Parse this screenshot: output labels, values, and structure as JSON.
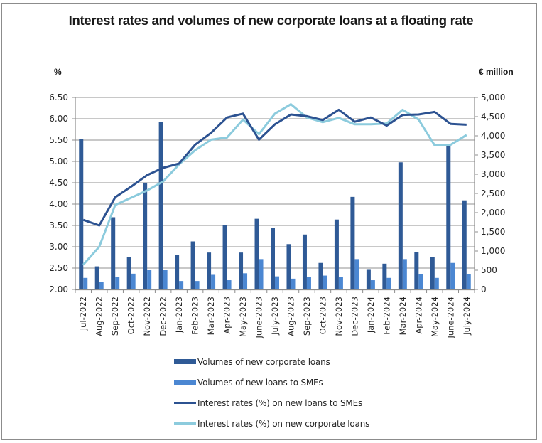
{
  "chart_data": {
    "type": "bar",
    "title": "Interest rates and volumes of new corporate loans at a floating rate",
    "categories": [
      "Jul-2022",
      "Aug-2022",
      "Sep-2022",
      "Oct-2022",
      "Nov-2022",
      "Dec-2022",
      "Jan-2023",
      "Feb-2023",
      "Mar-2023",
      "Apr-2023",
      "May-2023",
      "June-2023",
      "July-2023",
      "Aug-2023",
      "Sep-2023",
      "Oct-2023",
      "Nov-2023",
      "Dec-2023",
      "Jan-2024",
      "Feb-2024",
      "Mar-2024",
      "Apr-2024",
      "May-2024",
      "June-2024",
      "July-2024"
    ],
    "left_axis": {
      "label": "%",
      "range": [
        2.0,
        6.5
      ],
      "step": 0.5,
      "tick_labels": [
        "2.00",
        "2.50",
        "3.00",
        "3.50",
        "4.00",
        "4.50",
        "5.00",
        "5.50",
        "6.00",
        "6.50"
      ]
    },
    "right_axis": {
      "label": "€ million",
      "range": [
        0,
        5000
      ],
      "step": 500,
      "tick_labels": [
        "0",
        "500",
        "1,000",
        "1,500",
        "2,000",
        "2,500",
        "3,000",
        "3,500",
        "4,000",
        "4,500",
        "5,000"
      ]
    },
    "grid": true,
    "legend_position": "bottom",
    "series": [
      {
        "name": "Volumes of new corporate loans",
        "kind": "bar",
        "axis": "right",
        "color": "#2f5a96",
        "values": [
          3910,
          600,
          1880,
          850,
          2780,
          4360,
          890,
          1250,
          960,
          1670,
          960,
          1840,
          1610,
          1180,
          1430,
          690,
          1820,
          2410,
          510,
          670,
          3310,
          980,
          850,
          3740,
          2320
        ]
      },
      {
        "name": "Volumes of new loans to SMEs",
        "kind": "bar",
        "axis": "right",
        "color": "#4b87d2",
        "values": [
          300,
          190,
          320,
          410,
          500,
          500,
          220,
          220,
          380,
          240,
          420,
          790,
          340,
          280,
          330,
          360,
          330,
          790,
          240,
          300,
          790,
          400,
          300,
          690,
          400
        ]
      },
      {
        "name": "Interest rates (%) on new loans to SMEs",
        "kind": "line",
        "axis": "left",
        "color": "#2c5291",
        "values": [
          3.63,
          3.5,
          4.16,
          4.41,
          4.68,
          4.85,
          4.95,
          5.39,
          5.67,
          6.03,
          6.12,
          5.51,
          5.87,
          6.1,
          6.06,
          5.97,
          6.21,
          5.93,
          6.03,
          5.84,
          6.09,
          6.1,
          6.16,
          5.88,
          5.86
        ]
      },
      {
        "name": "Interest rates (%) on new corporate loans",
        "kind": "line",
        "axis": "left",
        "color": "#8ccbdd",
        "values": [
          2.58,
          3.0,
          3.98,
          4.15,
          4.32,
          4.53,
          4.93,
          5.26,
          5.51,
          5.56,
          5.98,
          5.64,
          6.12,
          6.34,
          6.03,
          5.92,
          6.02,
          5.87,
          5.87,
          5.89,
          6.21,
          5.98,
          5.38,
          5.39,
          5.62
        ]
      }
    ]
  }
}
